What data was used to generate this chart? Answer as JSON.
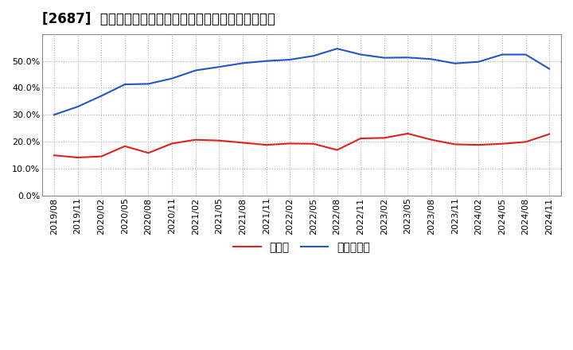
{
  "title": "[2687]  現預金、有利子負債の総資産に対する比率の推移",
  "x_labels": [
    "2019/08",
    "2019/11",
    "2020/02",
    "2020/05",
    "2020/08",
    "2020/11",
    "2021/02",
    "2021/05",
    "2021/08",
    "2021/11",
    "2022/02",
    "2022/05",
    "2022/08",
    "2022/11",
    "2023/02",
    "2023/05",
    "2023/08",
    "2023/11",
    "2024/02",
    "2024/05",
    "2024/08",
    "2024/11"
  ],
  "cash": [
    0.149,
    0.141,
    0.145,
    0.183,
    0.158,
    0.193,
    0.207,
    0.204,
    0.196,
    0.188,
    0.193,
    0.192,
    0.169,
    0.212,
    0.214,
    0.23,
    0.207,
    0.19,
    0.188,
    0.192,
    0.199,
    0.228
  ],
  "debt": [
    0.3,
    0.33,
    0.37,
    0.413,
    0.415,
    0.435,
    0.465,
    0.478,
    0.492,
    0.5,
    0.505,
    0.519,
    0.546,
    0.524,
    0.512,
    0.513,
    0.507,
    0.491,
    0.497,
    0.524,
    0.524,
    0.471
  ],
  "cash_color": "#dd2222",
  "debt_color": "#2255cc",
  "background_color": "#ffffff",
  "plot_bg_color": "#ffffff",
  "grid_color": "#aaaaaa",
  "legend_cash": "現預金",
  "legend_debt": "有利子負債",
  "ylim": [
    0.0,
    0.6
  ],
  "yticks": [
    0.0,
    0.1,
    0.2,
    0.3,
    0.4,
    0.5
  ],
  "title_fontsize": 12,
  "tick_fontsize": 8,
  "legend_fontsize": 10
}
